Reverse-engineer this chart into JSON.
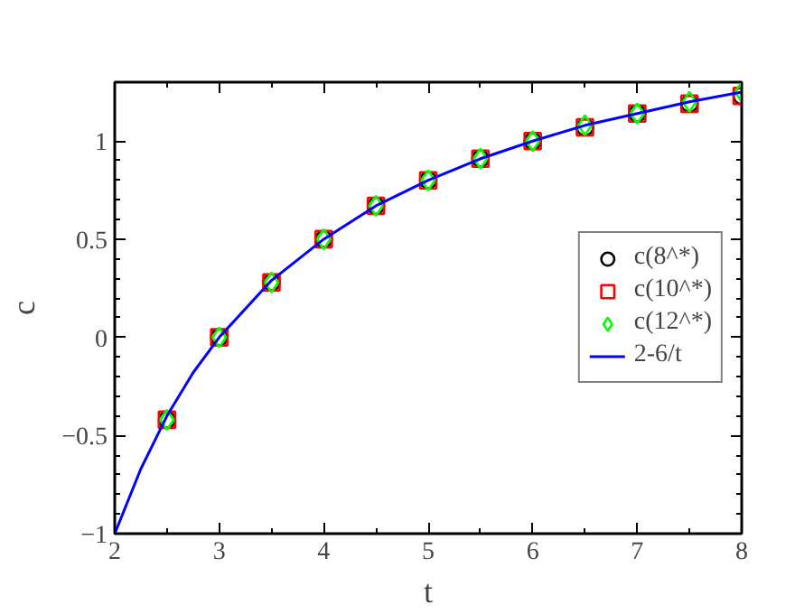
{
  "chart_data": {
    "type": "scatter",
    "xlabel": "t",
    "ylabel": "c",
    "xlim": [
      2,
      8
    ],
    "ylim": [
      -1,
      1.3
    ],
    "xticks": [
      2,
      3,
      4,
      5,
      6,
      7,
      8
    ],
    "yticks": [
      -1,
      -0.5,
      0,
      0.5,
      1
    ],
    "x": [
      2.5,
      3,
      3.5,
      4,
      4.5,
      5,
      5.5,
      6,
      6.5,
      7,
      7.5,
      8
    ],
    "series": [
      {
        "name": "c(8^*)",
        "color": "#000000",
        "marker": "circle",
        "values": [
          -0.42,
          0,
          0.28,
          0.5,
          0.67,
          0.8,
          0.91,
          1,
          1.07,
          1.14,
          1.19,
          1.23
        ]
      },
      {
        "name": "c(10^*)",
        "color": "#ff0000",
        "marker": "square",
        "values": [
          -0.42,
          0,
          0.28,
          0.5,
          0.67,
          0.8,
          0.91,
          1,
          1.07,
          1.14,
          1.19,
          1.23
        ]
      },
      {
        "name": "c(12^*)",
        "color": "#00ff00",
        "marker": "diamond",
        "values": [
          -0.42,
          0,
          0.28,
          0.5,
          0.67,
          0.8,
          0.91,
          1,
          1.08,
          1.14,
          1.2,
          1.25
        ]
      },
      {
        "name": "2-6/t",
        "color": "#0000ff",
        "type": "line",
        "marker": "none",
        "x": [
          2,
          2.25,
          2.5,
          2.75,
          3,
          3.5,
          4,
          4.5,
          5,
          5.5,
          6,
          6.5,
          7,
          7.5,
          8
        ],
        "values": [
          -1,
          -0.67,
          -0.4,
          -0.18,
          0,
          0.29,
          0.5,
          0.67,
          0.8,
          0.91,
          1,
          1.08,
          1.14,
          1.2,
          1.25
        ]
      }
    ],
    "legend": "right",
    "grid": false
  }
}
